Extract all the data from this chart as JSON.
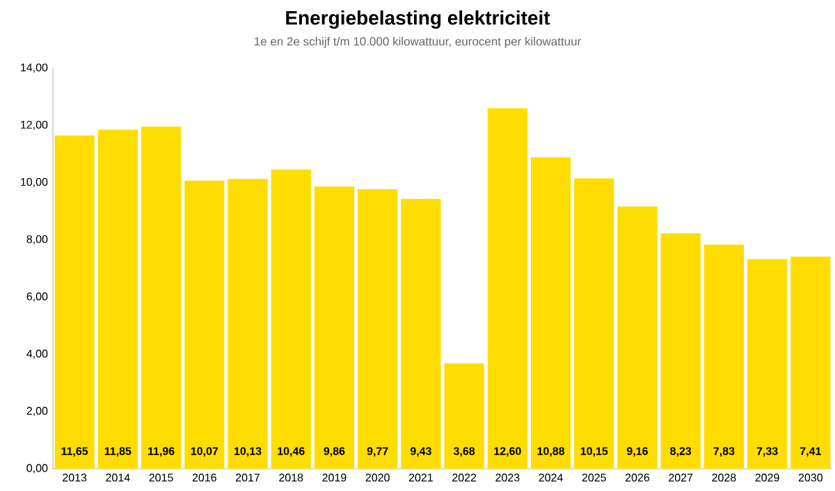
{
  "chart_data": {
    "type": "bar",
    "title": "Energiebelasting elektriciteit",
    "subtitle": "1e en 2e schijf t/m 10.000 kilowattuur, eurocent per kilowattuur",
    "categories": [
      "2013",
      "2014",
      "2015",
      "2016",
      "2017",
      "2018",
      "2019",
      "2020",
      "2021",
      "2022",
      "2023",
      "2024",
      "2025",
      "2026",
      "2027",
      "2028",
      "2029",
      "2030"
    ],
    "values": [
      11.65,
      11.85,
      11.96,
      10.07,
      10.13,
      10.46,
      9.86,
      9.77,
      9.43,
      3.68,
      12.6,
      10.88,
      10.15,
      9.16,
      8.23,
      7.83,
      7.33,
      7.41
    ],
    "value_labels": [
      "11,65",
      "11,85",
      "11,96",
      "10,07",
      "10,13",
      "10,46",
      "9,86",
      "9,77",
      "9,43",
      "3,68",
      "12,60",
      "10,88",
      "10,15",
      "9,16",
      "8,23",
      "7,83",
      "7,33",
      "7,41"
    ],
    "color": "#ffdd00",
    "ylim": [
      0,
      14
    ],
    "yticks": [
      {
        "value": 0,
        "label": "0,00"
      },
      {
        "value": 2,
        "label": "2,00"
      },
      {
        "value": 4,
        "label": "4,00"
      },
      {
        "value": 6,
        "label": "6,00"
      },
      {
        "value": 8,
        "label": "8,00"
      },
      {
        "value": 10,
        "label": "10,00"
      },
      {
        "value": 12,
        "label": "12,00"
      },
      {
        "value": 14,
        "label": "14,00"
      }
    ]
  }
}
